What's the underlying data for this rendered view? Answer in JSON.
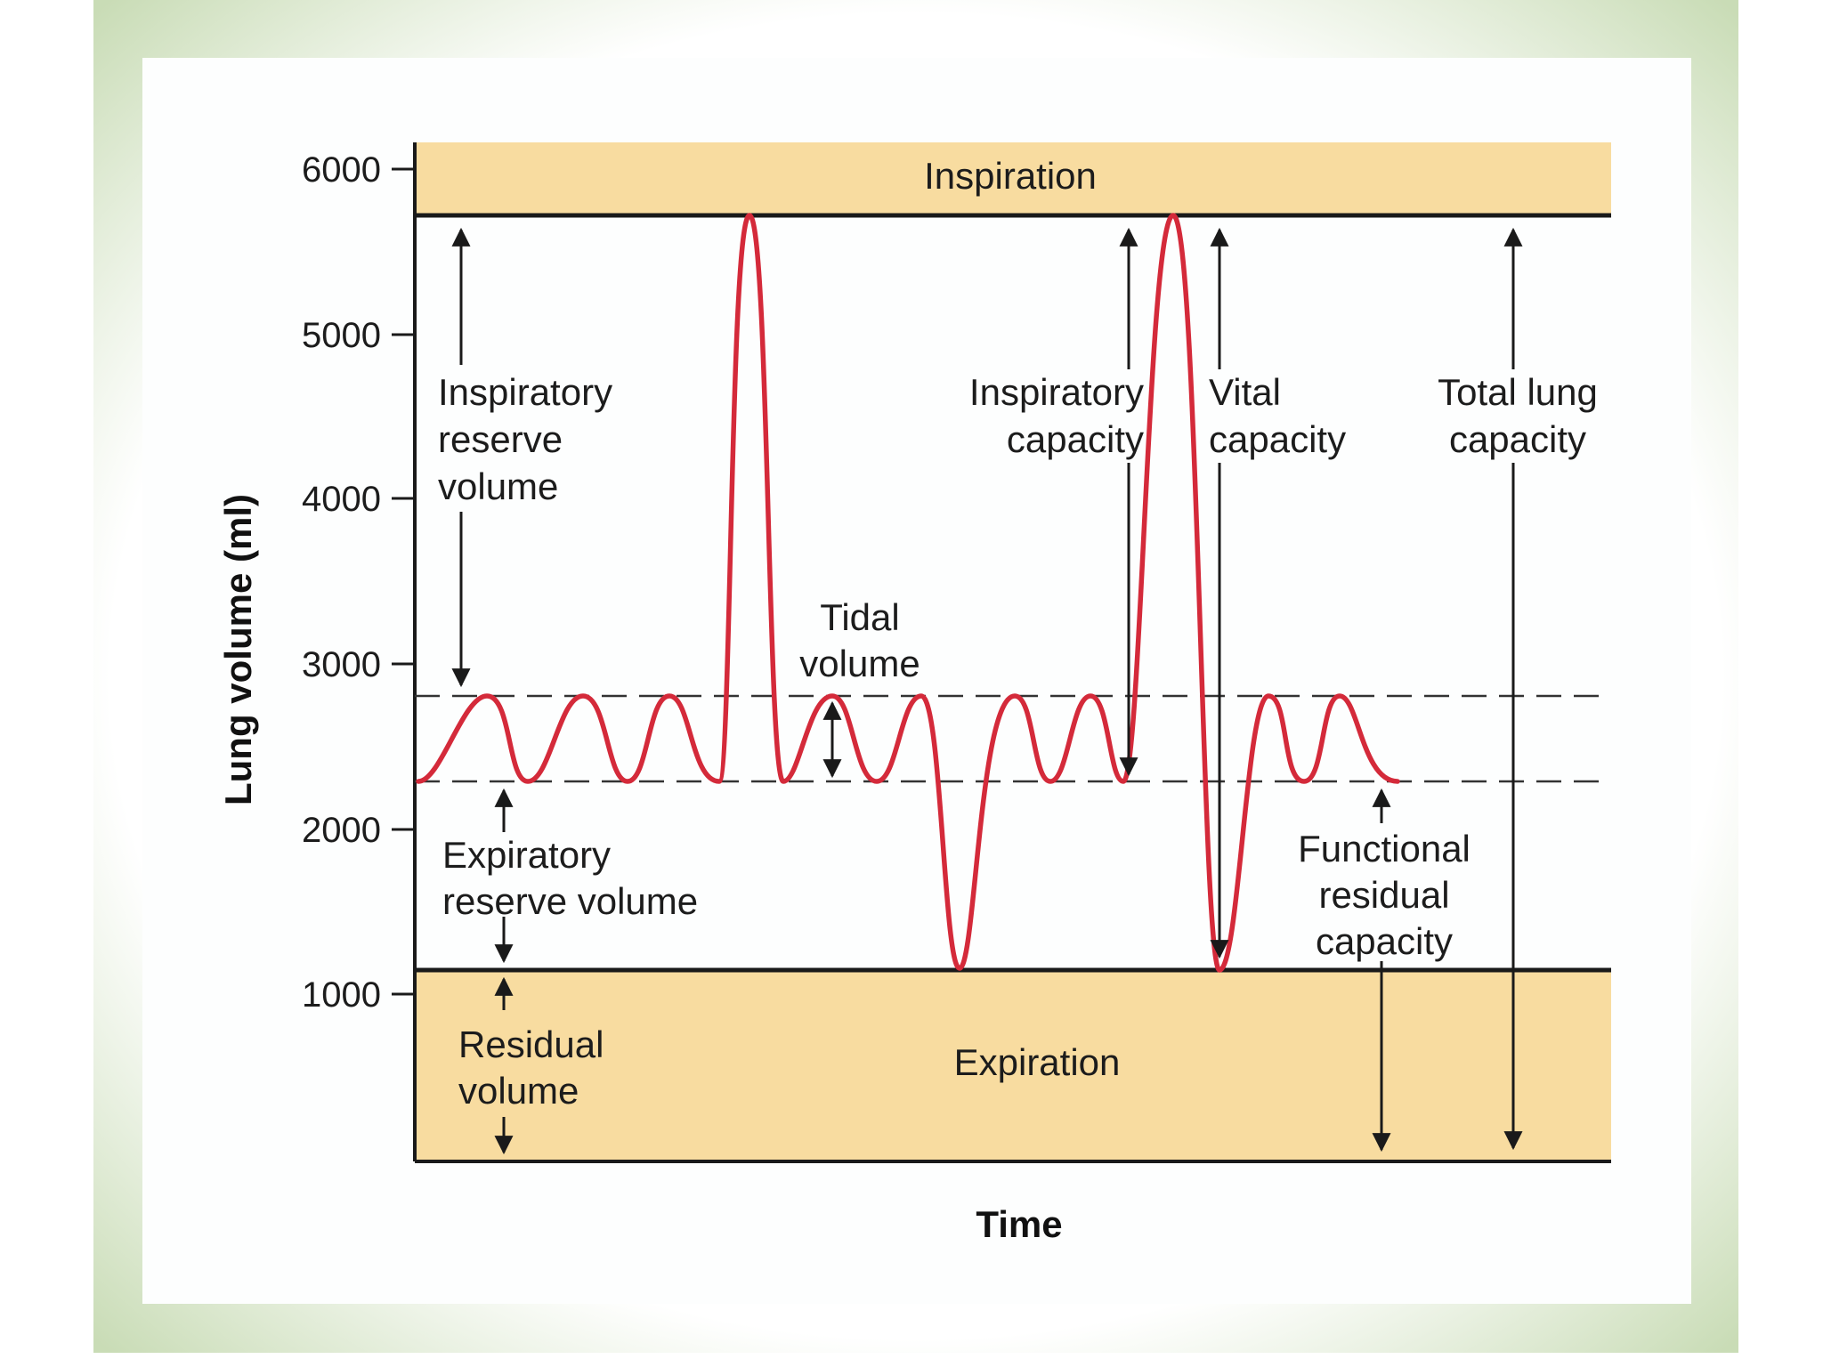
{
  "colors": {
    "frame": "#cfe0c0",
    "panel": "#fdfefe",
    "band": "#f8dca0",
    "curve": "#d42a3a",
    "ink": "#1a1a1a"
  },
  "bands": {
    "top": "Inspiration",
    "bottom": "Expiration"
  },
  "axes": {
    "ylabel": "Lung volume (ml)",
    "xlabel": "Time",
    "yticks": [
      "6000",
      "5000",
      "4000",
      "3000",
      "2000",
      "1000"
    ]
  },
  "labels": {
    "irv": [
      "Inspiratory",
      "reserve",
      "volume"
    ],
    "ic": [
      "Inspiratory",
      "capacity"
    ],
    "vc": [
      "Vital",
      "capacity"
    ],
    "tlc": [
      "Total lung",
      "capacity"
    ],
    "tidal": [
      "Tidal",
      "volume"
    ],
    "erv": [
      "Expiratory",
      "reserve volume"
    ],
    "frc": [
      "Functional",
      "residual",
      "capacity"
    ],
    "rv": [
      "Residual",
      "volume"
    ]
  },
  "levels_ml": {
    "max_inspiration": 5700,
    "tidal_top": 2800,
    "tidal_bottom": 2300,
    "min_expiration": 1150,
    "axis_bottom": 0
  }
}
